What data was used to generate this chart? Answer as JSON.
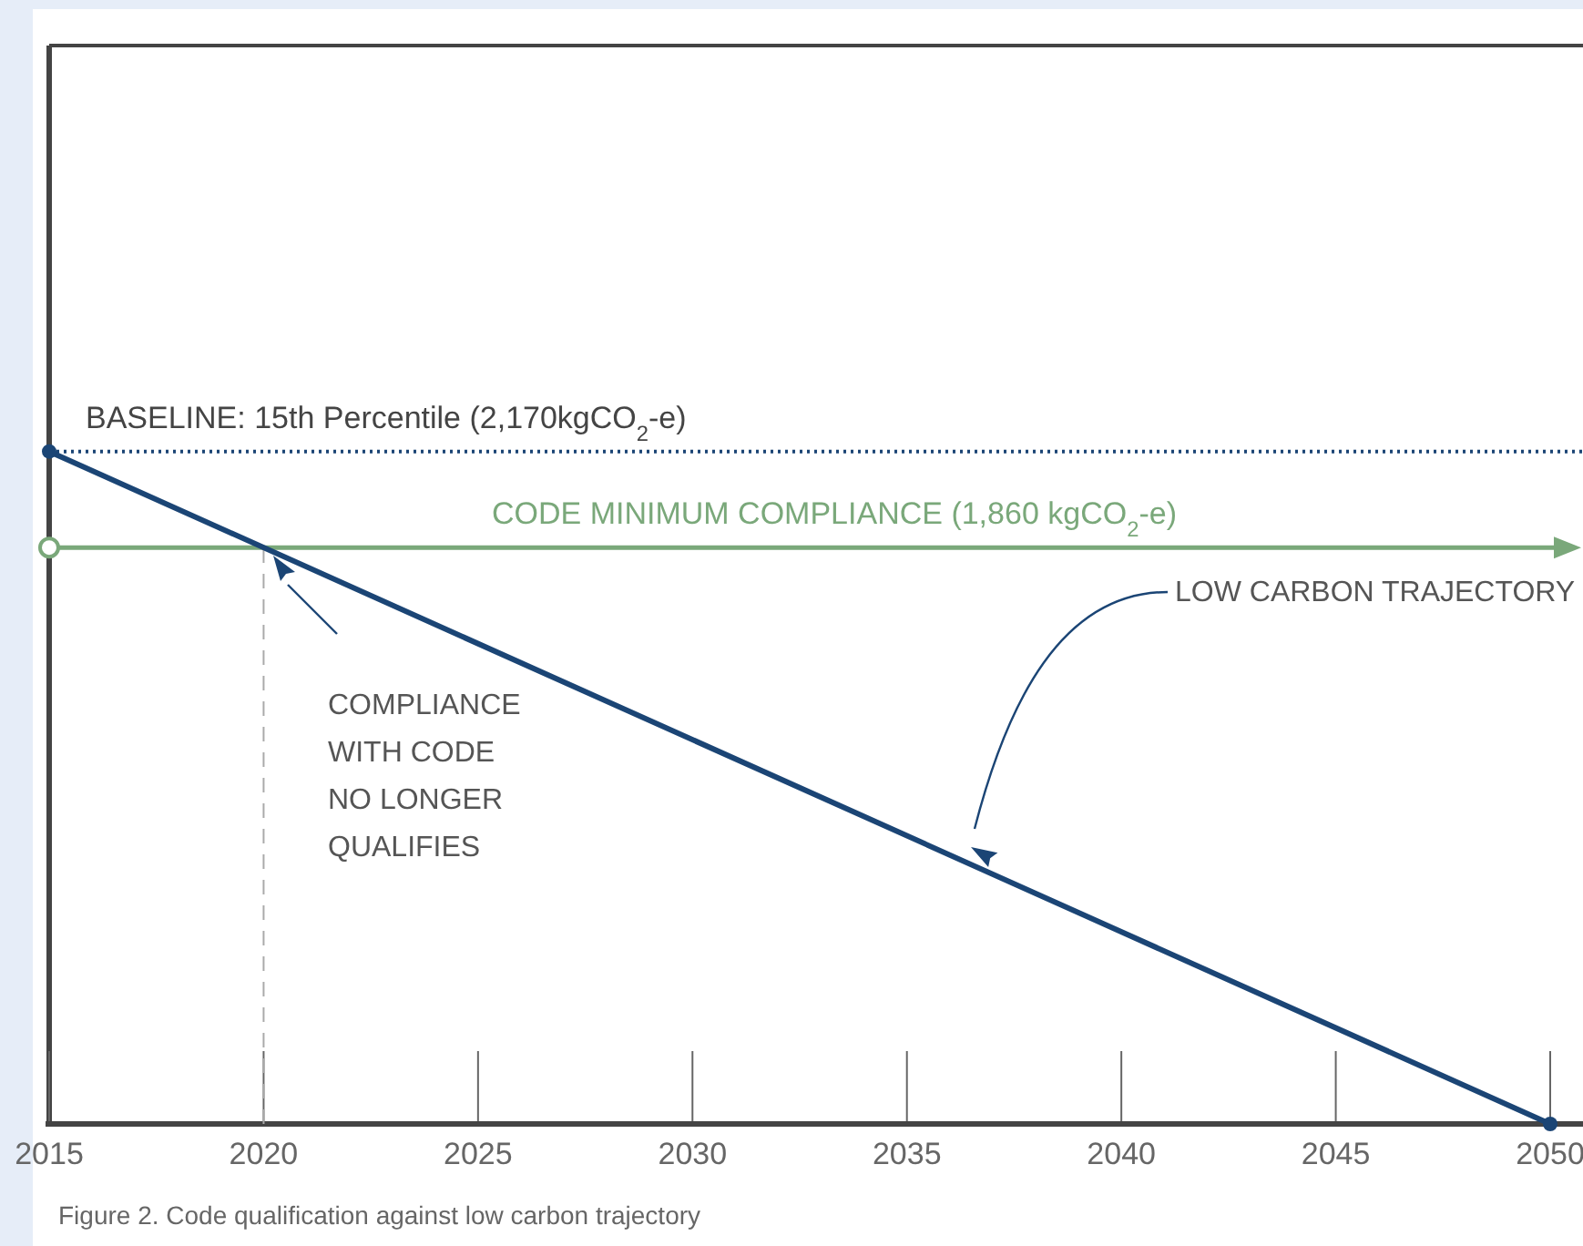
{
  "chart_data": {
    "type": "line",
    "x": [
      2015,
      2050
    ],
    "series": [
      {
        "color": "#1b4575",
        "values": [
          2170,
          0
        ]
      }
    ],
    "xlim": [
      2015,
      2050
    ],
    "xticks": [
      2015,
      2020,
      2025,
      2030,
      2035,
      2040,
      2045,
      2050
    ],
    "ylim": [
      0,
      3480
    ],
    "tick_labels": "x",
    "marker": "circle",
    "line_style": "solid",
    "ref_lines": [
      {
        "axis": "y",
        "value": 2170,
        "label": "BASELINE: 15th Percentile (2,170kgCO$_{2}$-e)",
        "color": "#1b4575",
        "line_style": "dotted"
      },
      {
        "axis": "y",
        "value": 1860,
        "label": "CODE MINIMUM COMPLIANCE (1,860 kgCO$_{2}$-e)",
        "color": "#7aa87a",
        "line_style": "solid"
      },
      {
        "axis": "x",
        "value": 2020,
        "color": "#aaaaaa",
        "line_style": "dashed"
      }
    ],
    "annotations": [
      "COMPLIANCE WITH CODE NO LONGER QUALIFIES",
      "LOW CARBON TRAJECTORY",
      "Figure 2. Code qualification against low carbon trajectory"
    ]
  }
}
